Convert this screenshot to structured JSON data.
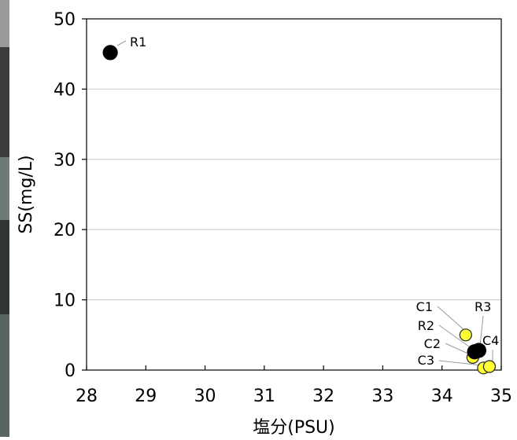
{
  "chart_data": {
    "type": "scatter",
    "xlabel": "塩分(PSU)",
    "ylabel": "SS(mg/L)",
    "xlim": [
      28,
      35
    ],
    "ylim": [
      0,
      50
    ],
    "x_ticks": [
      28,
      29,
      30,
      31,
      32,
      33,
      34,
      35
    ],
    "y_ticks": [
      0,
      10,
      20,
      30,
      40,
      50
    ],
    "grid": "horizontal",
    "legend": "none",
    "points": [
      {
        "label": "R1",
        "x": 28.4,
        "y": 45.2,
        "color": "#000000"
      },
      {
        "label": "R2",
        "x": 34.55,
        "y": 2.6,
        "color": "#000000"
      },
      {
        "label": "R3",
        "x": 34.62,
        "y": 2.8,
        "color": "#000000"
      },
      {
        "label": "C1",
        "x": 34.4,
        "y": 5.0,
        "color": "#ffff33"
      },
      {
        "label": "C2",
        "x": 34.52,
        "y": 1.8,
        "color": "#ffff33"
      },
      {
        "label": "C3",
        "x": 34.7,
        "y": 0.3,
        "color": "#ffff33"
      },
      {
        "label": "C4",
        "x": 34.8,
        "y": 0.5,
        "color": "#ffff33"
      }
    ]
  }
}
